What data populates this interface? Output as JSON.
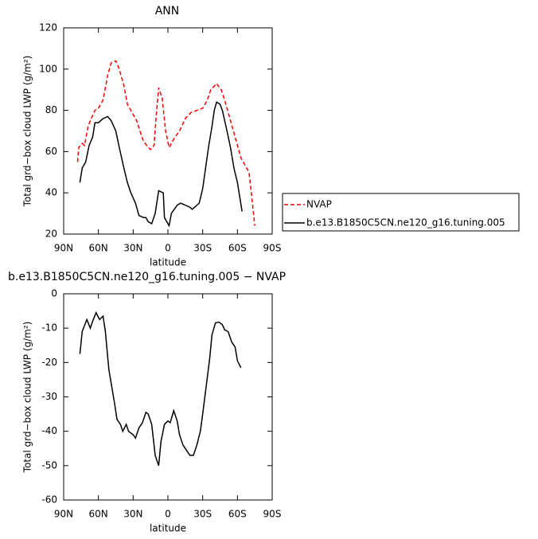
{
  "chart_data": [
    {
      "type": "line",
      "title": "ANN",
      "xlabel": "latitude",
      "ylabel": "Total grd−box cloud LWP (g/m²)",
      "xlim": [
        90,
        -90
      ],
      "xticks": [
        {
          "value": 90,
          "label": "90N"
        },
        {
          "value": 60,
          "label": "60N"
        },
        {
          "value": 30,
          "label": "30N"
        },
        {
          "value": 0,
          "label": "0"
        },
        {
          "value": -30,
          "label": "30S"
        },
        {
          "value": -60,
          "label": "60S"
        },
        {
          "value": -90,
          "label": "90S"
        }
      ],
      "ylim": [
        20,
        120
      ],
      "yticks": [
        20,
        40,
        60,
        80,
        100,
        120
      ],
      "legend": "right",
      "series": [
        {
          "name": "NVAP",
          "color": "#ff0000",
          "dash": "dashed",
          "x": [
            78,
            77,
            74,
            72,
            69,
            67,
            63,
            60,
            56,
            52,
            49,
            45,
            42,
            38,
            35,
            31,
            27,
            23,
            21,
            17,
            15,
            12,
            10,
            8,
            5,
            2,
            -1,
            -5,
            -10,
            -15,
            -20,
            -25,
            -30,
            -34,
            -37,
            -42,
            -46,
            -49,
            -54,
            -59,
            -63,
            -67,
            -70,
            -72,
            -75
          ],
          "values": [
            55,
            62,
            64,
            63,
            72,
            75,
            80,
            81,
            85,
            97,
            103,
            104,
            100,
            92,
            83,
            79,
            75,
            68,
            65,
            62,
            61,
            63,
            78,
            91,
            86,
            70,
            62,
            66,
            70,
            76,
            79,
            80,
            81,
            85,
            90,
            93,
            90,
            85,
            75,
            65,
            57,
            53,
            50,
            40,
            24
          ]
        },
        {
          "name": "b.e13.B1850C5CN.ne120_g16.tuning.005",
          "color": "#000000",
          "dash": "solid",
          "x": [
            76,
            74,
            71,
            68,
            65,
            63,
            60,
            56,
            52,
            49,
            45,
            42,
            38,
            35,
            32,
            28,
            25,
            21,
            19,
            17,
            14,
            11,
            8,
            4,
            3,
            -1,
            -3,
            -8,
            -11,
            -15,
            -19,
            -21,
            -23,
            -27,
            -30,
            -32,
            -35,
            -38,
            -40,
            -42,
            -45,
            -47,
            -51,
            -54,
            -57,
            -60,
            -62,
            -64
          ],
          "values": [
            45,
            52,
            55,
            63,
            67,
            74,
            74,
            76,
            77,
            75,
            70,
            62,
            52,
            45,
            40,
            35,
            29,
            28,
            28,
            26,
            25,
            30,
            41,
            40,
            28,
            24,
            30,
            34,
            35,
            34,
            33,
            32,
            33,
            35,
            42,
            50,
            62,
            72,
            80,
            84,
            83,
            80,
            70,
            62,
            52,
            45,
            38,
            31
          ]
        }
      ]
    },
    {
      "type": "line",
      "title": "b.e13.B1850C5CN.ne120_g16.tuning.005 − NVAP",
      "xlabel": "latitude",
      "ylabel": "Total grd−box cloud LWP (g/m²)",
      "xlim": [
        90,
        -90
      ],
      "xticks": [
        {
          "value": 90,
          "label": "90N"
        },
        {
          "value": 60,
          "label": "60N"
        },
        {
          "value": 30,
          "label": "30N"
        },
        {
          "value": 0,
          "label": "0"
        },
        {
          "value": -30,
          "label": "30S"
        },
        {
          "value": -60,
          "label": "60S"
        },
        {
          "value": -90,
          "label": "90S"
        }
      ],
      "ylim": [
        -60,
        0
      ],
      "yticks": [
        -60,
        -50,
        -40,
        -30,
        -20,
        -10,
        0
      ],
      "color": "#000000",
      "x": [
        76,
        74,
        70,
        67,
        65,
        62,
        59,
        56,
        54,
        51,
        48,
        46,
        44,
        41,
        39,
        36,
        34,
        30,
        28,
        25,
        22,
        19,
        17,
        14,
        11,
        8,
        6,
        3,
        0,
        -2,
        -5,
        -8,
        -10,
        -13,
        -16,
        -19,
        -22,
        -25,
        -28,
        -30,
        -33,
        -36,
        -38,
        -41,
        -44,
        -47,
        -49,
        -52,
        -55,
        -58,
        -60,
        -63
      ],
      "values": [
        -17.5,
        -11,
        -7.5,
        -10,
        -8,
        -5.5,
        -7.5,
        -6.5,
        -11,
        -22,
        -28,
        -32,
        -36.5,
        -38,
        -40,
        -38,
        -40,
        -41,
        -42,
        -39,
        -37.5,
        -34.5,
        -35,
        -38,
        -47,
        -50,
        -43,
        -38,
        -37,
        -37.5,
        -34,
        -37,
        -41,
        -44,
        -45.5,
        -47,
        -47,
        -44,
        -40,
        -35,
        -27,
        -19,
        -12,
        -8.5,
        -8.2,
        -9,
        -10.5,
        -11,
        -14,
        -15.5,
        -19.5,
        -21.5
      ]
    }
  ]
}
